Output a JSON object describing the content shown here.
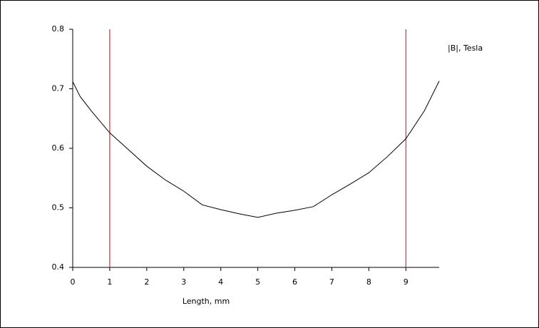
{
  "chart_data": {
    "type": "line",
    "x_label": "Length, mm",
    "y_label": "|B|, Tesla",
    "x": [
      0,
      0.2,
      0.5,
      1.0,
      1.5,
      2.0,
      2.5,
      3.0,
      3.5,
      4.0,
      4.5,
      5.0,
      5.5,
      6.0,
      6.5,
      7.0,
      7.5,
      8.0,
      8.5,
      9.0,
      9.5,
      9.9
    ],
    "series": [
      {
        "name": "|B|, Tesla",
        "color": "#000000",
        "values": [
          0.712,
          0.687,
          0.663,
          0.626,
          0.598,
          0.57,
          0.547,
          0.528,
          0.505,
          0.497,
          0.49,
          0.484,
          0.491,
          0.496,
          0.502,
          0.522,
          0.54,
          0.559,
          0.586,
          0.616,
          0.663,
          0.713
        ]
      }
    ],
    "xlim": [
      0,
      9.9
    ],
    "xticks": [
      0,
      1,
      2,
      3,
      4,
      5,
      6,
      7,
      8,
      9
    ],
    "ylim": [
      0.4,
      0.8
    ],
    "yticks": [
      0.4,
      0.5,
      0.6,
      0.7,
      0.8
    ],
    "vertical_markers": [
      1,
      9
    ],
    "marker_color": "#e00000"
  }
}
